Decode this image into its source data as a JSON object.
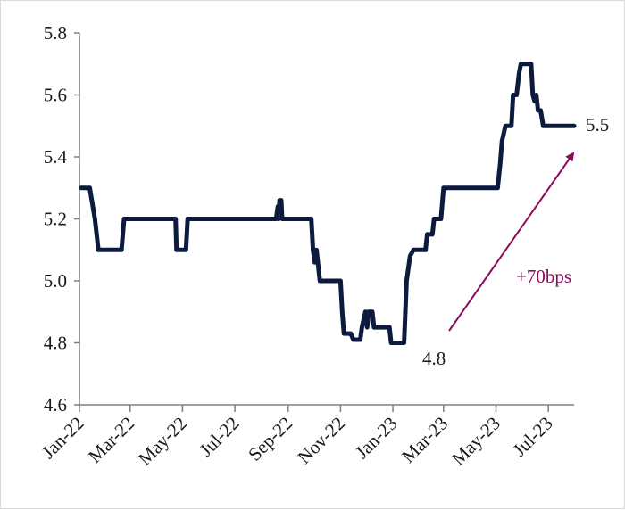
{
  "chart_data": {
    "type": "line",
    "title": "",
    "xlabel": "",
    "ylabel": "",
    "ylim": [
      4.6,
      5.8
    ],
    "yticks": [
      "4.6",
      "4.8",
      "5.0",
      "5.2",
      "5.4",
      "5.6",
      "5.8"
    ],
    "xticks": [
      "Jan-22",
      "Mar-22",
      "May-22",
      "Jul-22",
      "Sep-22",
      "Nov-22",
      "Jan-23",
      "Mar-23",
      "May-23",
      "Jul-23"
    ],
    "grid": false,
    "legend": "none",
    "series": [
      {
        "color": "#0b1a3d",
        "points": [
          [
            "2022-01-03",
            5.3
          ],
          [
            "2022-01-13",
            5.3
          ],
          [
            "2022-01-16",
            5.25
          ],
          [
            "2022-01-19",
            5.2
          ],
          [
            "2022-01-23",
            5.1
          ],
          [
            "2022-02-19",
            5.1
          ],
          [
            "2022-02-22",
            5.2
          ],
          [
            "2022-04-23",
            5.2
          ],
          [
            "2022-04-24",
            5.1
          ],
          [
            "2022-05-05",
            5.1
          ],
          [
            "2022-05-07",
            5.2
          ],
          [
            "2022-08-18",
            5.2
          ],
          [
            "2022-08-20",
            5.24
          ],
          [
            "2022-08-21",
            5.2
          ],
          [
            "2022-08-22",
            5.26
          ],
          [
            "2022-08-24",
            5.26
          ],
          [
            "2022-08-25",
            5.2
          ],
          [
            "2022-09-28",
            5.2
          ],
          [
            "2022-09-30",
            5.1
          ],
          [
            "2022-10-02",
            5.06
          ],
          [
            "2022-10-04",
            5.1
          ],
          [
            "2022-10-08",
            5.0
          ],
          [
            "2022-11-01",
            5.0
          ],
          [
            "2022-11-03",
            4.9
          ],
          [
            "2022-11-05",
            4.83
          ],
          [
            "2022-11-13",
            4.83
          ],
          [
            "2022-11-16",
            4.81
          ],
          [
            "2022-11-24",
            4.81
          ],
          [
            "2022-11-26",
            4.85
          ],
          [
            "2022-11-30",
            4.9
          ],
          [
            "2022-12-02",
            4.85
          ],
          [
            "2022-12-04",
            4.9
          ],
          [
            "2022-12-08",
            4.9
          ],
          [
            "2022-12-10",
            4.85
          ],
          [
            "2022-12-28",
            4.85
          ],
          [
            "2022-12-30",
            4.8
          ],
          [
            "2023-01-14",
            4.8
          ],
          [
            "2023-01-17",
            5.0
          ],
          [
            "2023-01-21",
            5.08
          ],
          [
            "2023-01-25",
            5.1
          ],
          [
            "2023-02-08",
            5.1
          ],
          [
            "2023-02-10",
            5.15
          ],
          [
            "2023-02-16",
            5.15
          ],
          [
            "2023-02-18",
            5.2
          ],
          [
            "2023-02-26",
            5.2
          ],
          [
            "2023-03-01",
            5.3
          ],
          [
            "2023-05-03",
            5.3
          ],
          [
            "2023-05-06",
            5.38
          ],
          [
            "2023-05-08",
            5.45
          ],
          [
            "2023-05-12",
            5.5
          ],
          [
            "2023-05-19",
            5.5
          ],
          [
            "2023-05-21",
            5.6
          ],
          [
            "2023-05-25",
            5.6
          ],
          [
            "2023-05-28",
            5.67
          ],
          [
            "2023-05-30",
            5.7
          ],
          [
            "2023-06-11",
            5.7
          ],
          [
            "2023-06-13",
            5.6
          ],
          [
            "2023-06-15",
            5.58
          ],
          [
            "2023-06-17",
            5.6
          ],
          [
            "2023-06-19",
            5.55
          ],
          [
            "2023-06-22",
            5.55
          ],
          [
            "2023-06-25",
            5.5
          ],
          [
            "2023-07-31",
            5.5
          ]
        ]
      }
    ],
    "annotations": {
      "end_value": "5.5",
      "low_value": "4.8",
      "change_label": "+70bps",
      "arrow_color": "#8b0a5a"
    }
  }
}
